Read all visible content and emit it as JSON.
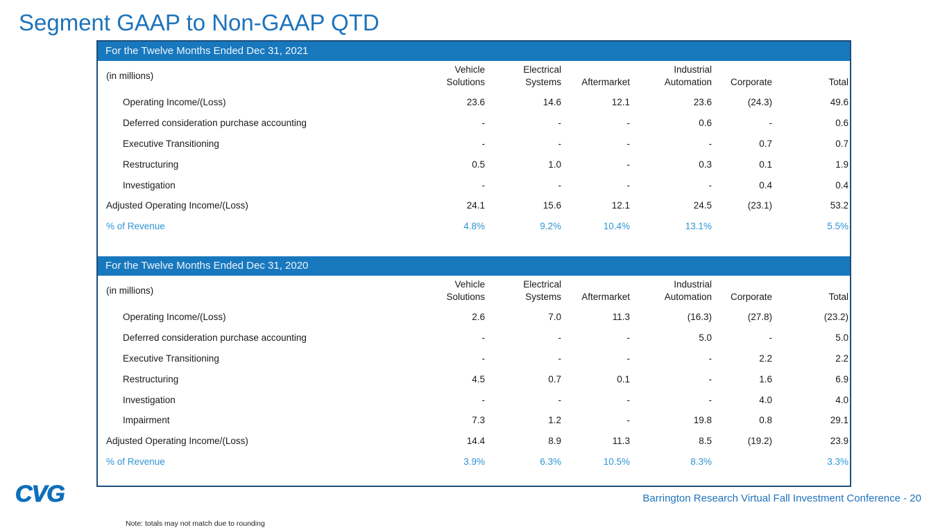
{
  "title": "Segment GAAP to Non-GAAP QTD",
  "unit_label": "(in millions)",
  "columns": [
    "Vehicle\nSolutions",
    "Electrical\nSystems",
    "Aftermarket",
    "Industrial\nAutomation",
    "Corporate",
    "Total"
  ],
  "tables": [
    {
      "header": "For the Twelve Months Ended Dec 31, 2021",
      "rows": [
        {
          "label": "Operating Income/(Loss)",
          "indent": 1,
          "style": "normal",
          "values": [
            "23.6",
            "14.6",
            "12.1",
            "23.6",
            "(24.3)",
            "49.6"
          ]
        },
        {
          "label": "Deferred consideration purchase accounting",
          "indent": 1,
          "style": "normal",
          "values": [
            "-",
            "-",
            "-",
            "0.6",
            "-",
            "0.6"
          ]
        },
        {
          "label": "Executive Transitioning",
          "indent": 1,
          "style": "normal",
          "values": [
            "-",
            "-",
            "-",
            "-",
            "0.7",
            "0.7"
          ]
        },
        {
          "label": "Restructuring",
          "indent": 1,
          "style": "normal",
          "values": [
            "0.5",
            "1.0",
            "-",
            "0.3",
            "0.1",
            "1.9"
          ]
        },
        {
          "label": "Investigation",
          "indent": 1,
          "style": "normal",
          "values": [
            "-",
            "-",
            "-",
            "-",
            "0.4",
            "0.4"
          ]
        },
        {
          "label": "Adjusted Operating Income/(Loss)",
          "indent": 0,
          "style": "normal",
          "values": [
            "24.1",
            "15.6",
            "12.1",
            "24.5",
            "(23.1)",
            "53.2"
          ]
        },
        {
          "label": "% of Revenue",
          "indent": 0,
          "style": "pct",
          "values": [
            "4.8%",
            "9.2%",
            "10.4%",
            "13.1%",
            "",
            "5.5%"
          ]
        }
      ]
    },
    {
      "header": "For the Twelve Months Ended Dec 31, 2020",
      "rows": [
        {
          "label": "Operating Income/(Loss)",
          "indent": 1,
          "style": "normal",
          "values": [
            "2.6",
            "7.0",
            "11.3",
            "(16.3)",
            "(27.8)",
            "(23.2)"
          ]
        },
        {
          "label": "Deferred consideration purchase accounting",
          "indent": 1,
          "style": "normal",
          "values": [
            "-",
            "-",
            "-",
            "5.0",
            "-",
            "5.0"
          ]
        },
        {
          "label": "Executive Transitioning",
          "indent": 1,
          "style": "normal",
          "values": [
            "-",
            "-",
            "-",
            "-",
            "2.2",
            "2.2"
          ]
        },
        {
          "label": "Restructuring",
          "indent": 1,
          "style": "normal",
          "values": [
            "4.5",
            "0.7",
            "0.1",
            "-",
            "1.6",
            "6.9"
          ]
        },
        {
          "label": "Investigation",
          "indent": 1,
          "style": "normal",
          "values": [
            "-",
            "-",
            "-",
            "-",
            "4.0",
            "4.0"
          ]
        },
        {
          "label": "Impairment",
          "indent": 1,
          "style": "normal",
          "values": [
            "7.3",
            "1.2",
            "-",
            "19.8",
            "0.8",
            "29.1"
          ]
        },
        {
          "label": "Adjusted Operating Income/(Loss)",
          "indent": 0,
          "style": "normal",
          "values": [
            "14.4",
            "8.9",
            "11.3",
            "8.5",
            "(19.2)",
            "23.9"
          ]
        },
        {
          "label": "% of Revenue",
          "indent": 0,
          "style": "pct",
          "values": [
            "3.9%",
            "6.3%",
            "10.5%",
            "8.3%",
            "",
            "3.3%"
          ]
        }
      ]
    }
  ],
  "footer": {
    "logo_text": "CVG",
    "conference": "Barrington Research Virtual Fall Investment Conference - 20",
    "note": "Note: totals may not match due to rounding"
  },
  "colors": {
    "header_bar": "#1878be",
    "panel_border": "#1f4e79",
    "title_blue": "#1e73ba",
    "pct_blue": "#2e94d4",
    "footer_blue": "#2173bc",
    "logo_blue": "#0e6fbb"
  }
}
